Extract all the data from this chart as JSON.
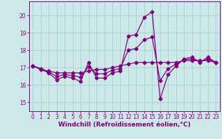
{
  "bg_color": "#cce8e8",
  "grid_color": "#aacfcf",
  "line_color": "#800080",
  "marker": "D",
  "markersize": 2.5,
  "linewidth": 0.9,
  "xlabel": "Windchill (Refroidissement éolien,°C)",
  "xlabel_fontsize": 6.5,
  "ylabel_ticks": [
    15,
    16,
    17,
    18,
    19,
    20
  ],
  "xticks": [
    0,
    1,
    2,
    3,
    4,
    5,
    6,
    7,
    8,
    9,
    10,
    11,
    12,
    13,
    14,
    15,
    16,
    17,
    18,
    19,
    20,
    21,
    22,
    23
  ],
  "xlim": [
    -0.5,
    23.5
  ],
  "ylim": [
    14.5,
    20.8
  ],
  "tick_fontsize": 5.5,
  "series1": [
    17.1,
    16.9,
    16.7,
    16.3,
    16.5,
    16.4,
    16.2,
    17.3,
    16.4,
    16.4,
    16.7,
    16.8,
    18.8,
    18.9,
    19.9,
    20.2,
    15.2,
    16.6,
    17.1,
    17.5,
    17.6,
    17.3,
    17.6,
    17.3
  ],
  "series2": [
    17.1,
    16.9,
    16.8,
    16.7,
    16.7,
    16.7,
    16.7,
    16.8,
    16.9,
    16.9,
    17.0,
    17.1,
    17.2,
    17.3,
    17.3,
    17.3,
    17.3,
    17.3,
    17.3,
    17.4,
    17.4,
    17.4,
    17.4,
    17.3
  ],
  "series3": [
    17.1,
    16.95,
    16.75,
    16.5,
    16.6,
    16.55,
    16.45,
    17.05,
    16.65,
    16.65,
    16.85,
    16.95,
    18.0,
    18.1,
    18.6,
    18.75,
    16.25,
    16.95,
    17.2,
    17.45,
    17.5,
    17.35,
    17.5,
    17.3
  ]
}
